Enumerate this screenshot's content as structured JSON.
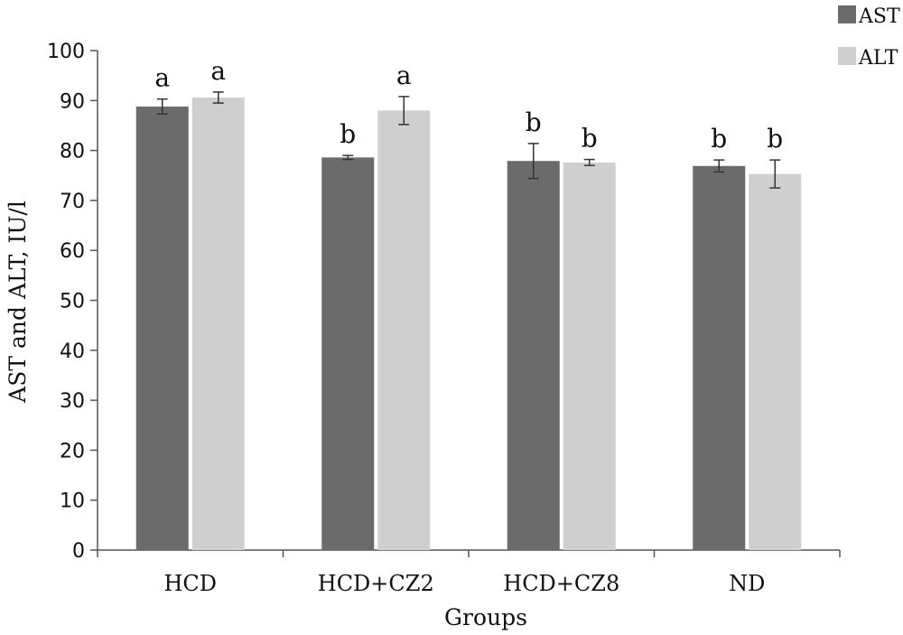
{
  "chart_data": {
    "type": "bar",
    "categories": [
      "HCD",
      "HCD+CZ2",
      "HCD+CZ8",
      "ND"
    ],
    "series": [
      {
        "name": "AST",
        "color": "#6b6b6b",
        "values": [
          88.8,
          78.6,
          77.9,
          76.9
        ],
        "errors": [
          1.5,
          0.4,
          3.5,
          1.2
        ],
        "labels": [
          "a",
          "b",
          "b",
          "b"
        ]
      },
      {
        "name": "ALT",
        "color": "#cfcfcf",
        "values": [
          90.6,
          88.0,
          77.6,
          75.3
        ],
        "errors": [
          1.1,
          2.8,
          0.6,
          2.8
        ],
        "labels": [
          "a",
          "a",
          "b",
          "b"
        ]
      }
    ],
    "xlabel": "Groups",
    "ylabel": "AST and ALT, IU/l",
    "ylim": [
      0,
      100
    ],
    "yticks": [
      0,
      10,
      20,
      30,
      40,
      50,
      60,
      70,
      80,
      90,
      100
    ],
    "grid": false,
    "legend": "top-right"
  }
}
